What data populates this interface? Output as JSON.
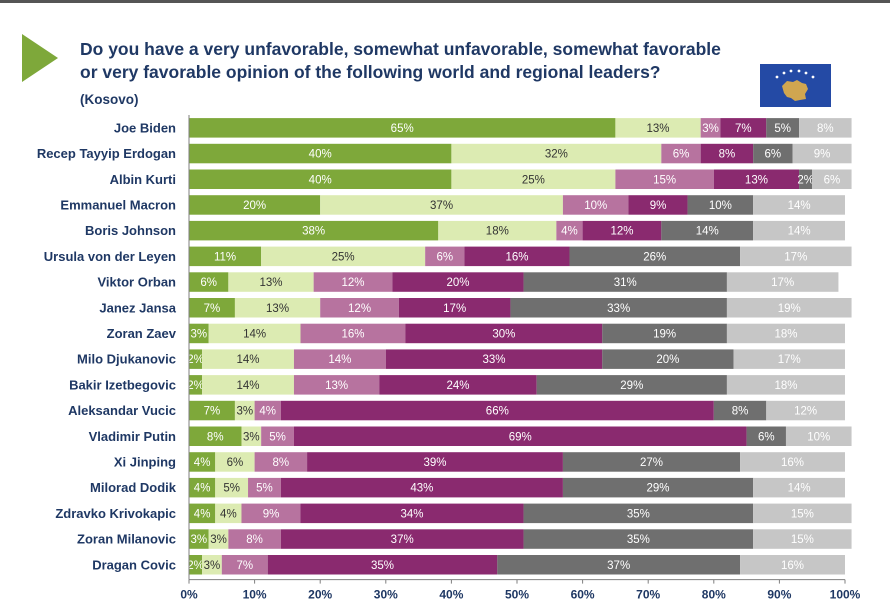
{
  "header": {
    "title_line1": "Do you have a very unfavorable, somewhat unfavorable, somewhat favorable",
    "title_line2": "or very favorable opinion of the following world and regional leaders?",
    "subtitle": "(Kosovo)"
  },
  "colors": {
    "very_favorable": "#7ea83a",
    "somewhat_favorable": "#dcebb2",
    "somewhat_unfavorable": "#b7739f",
    "very_unfavorable": "#8a2a6f",
    "dont_know": "#6f6f6f",
    "refused": "#c6c6c6",
    "accent": "#7ea83a",
    "title": "#1f3864"
  },
  "icons": [
    "arrow-icon",
    "kosovo-flag-icon"
  ],
  "chart_data": {
    "type": "bar",
    "orientation": "horizontal",
    "stacked": true,
    "title": "Do you have a very unfavorable, somewhat unfavorable, somewhat favorable or very favorable opinion of the following world and regional leaders?",
    "subtitle": "(Kosovo)",
    "xlim": [
      0,
      100
    ],
    "xticks": [
      "0%",
      "10%",
      "20%",
      "30%",
      "40%",
      "50%",
      "60%",
      "70%",
      "80%",
      "90%",
      "100%"
    ],
    "grid": false,
    "legend": "none",
    "categories": [
      "Joe Biden",
      "Recep Tayyip Erdogan",
      "Albin Kurti",
      "Emmanuel Macron",
      "Boris Johnson",
      "Ursula von der Leyen",
      "Viktor Orban",
      "Janez Jansa",
      "Zoran Zaev",
      "Milo Djukanovic",
      "Bakir Izetbegovic",
      "Aleksandar Vucic",
      "Vladimir Putin",
      "Xi Jinping",
      "Milorad Dodik",
      "Zdravko Krivokapic",
      "Zoran Milanovic",
      "Dragan Covic"
    ],
    "series": [
      {
        "color": "#7ea83a",
        "values": [
          65,
          40,
          40,
          20,
          38,
          11,
          6,
          7,
          3,
          2,
          2,
          7,
          8,
          4,
          4,
          4,
          3,
          2
        ]
      },
      {
        "color": "#dcebb2",
        "values": [
          13,
          32,
          25,
          37,
          18,
          25,
          13,
          13,
          14,
          14,
          14,
          3,
          3,
          6,
          5,
          4,
          3,
          3
        ]
      },
      {
        "color": "#b7739f",
        "values": [
          3,
          6,
          15,
          10,
          4,
          6,
          12,
          12,
          16,
          14,
          13,
          4,
          5,
          8,
          5,
          9,
          8,
          7
        ]
      },
      {
        "color": "#8a2a6f",
        "values": [
          7,
          8,
          13,
          9,
          12,
          16,
          20,
          17,
          30,
          33,
          24,
          66,
          69,
          39,
          43,
          34,
          37,
          35
        ]
      },
      {
        "color": "#6f6f6f",
        "values": [
          5,
          6,
          2,
          10,
          14,
          26,
          31,
          33,
          19,
          20,
          29,
          8,
          6,
          27,
          29,
          35,
          35,
          37
        ]
      },
      {
        "color": "#c6c6c6",
        "values": [
          8,
          9,
          6,
          14,
          14,
          17,
          17,
          19,
          18,
          17,
          18,
          12,
          10,
          16,
          14,
          15,
          15,
          16
        ]
      }
    ]
  }
}
